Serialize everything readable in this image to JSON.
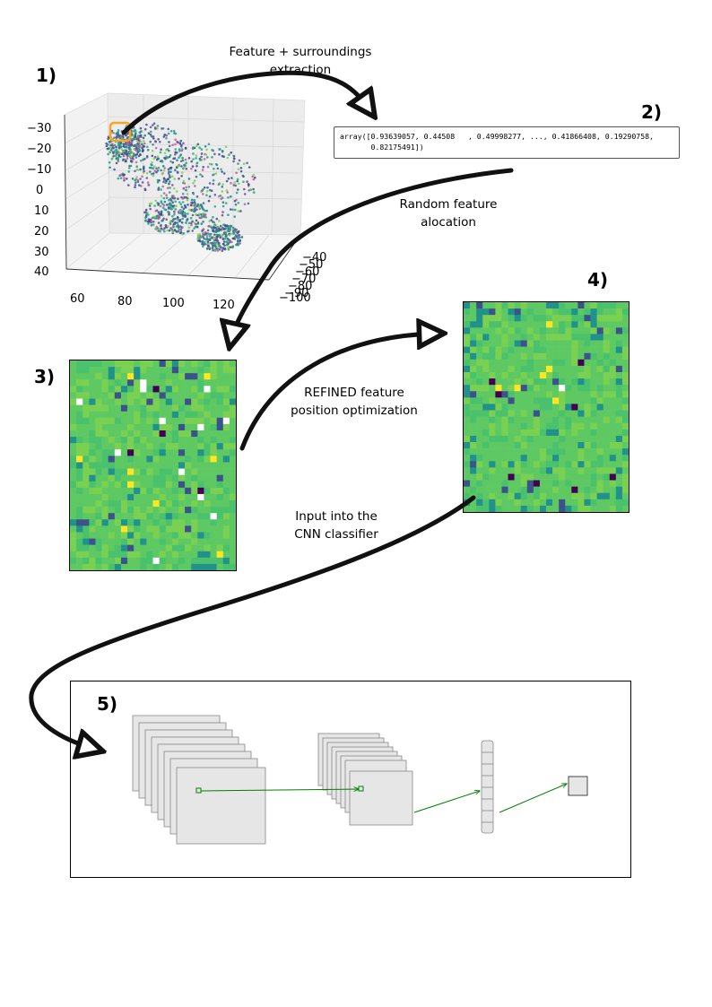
{
  "steps": {
    "s1": "1)",
    "s2": "2)",
    "s3": "3)",
    "s4": "4)",
    "s5": "5)"
  },
  "captions": {
    "extraction_line1": "Feature + surroundings",
    "extraction_line2": "extraction",
    "random_line1": "Random feature",
    "random_line2": "alocation",
    "refined_line1": "REFINED feature",
    "refined_line2": "position optimization",
    "input_line1": "Input into the",
    "input_line2": "CNN classifier"
  },
  "array_text": {
    "line1": "array([0.93639057, 0.44508   , 0.49998277, ..., 0.41866408, 0.19290758,",
    "line2": "       0.82175491])"
  },
  "plot3d": {
    "z_ticks": [
      "−30",
      "−20",
      "−10",
      "0",
      "10",
      "20",
      "30",
      "40"
    ],
    "x_ticks": [
      "60",
      "80",
      "100",
      "120"
    ],
    "y_ticks": [
      "−40",
      "−50",
      "−60",
      "−70",
      "−80",
      "−90",
      "−100"
    ]
  },
  "colors": {
    "heat_base": "#5ec962",
    "heat_light": "#7ad151",
    "heat_teal": "#21918c",
    "heat_blue": "#3b528b",
    "heat_dark": "#440154",
    "heat_yellow": "#fde725",
    "highlight": "#f5a623",
    "arrow_green": "#008000"
  }
}
